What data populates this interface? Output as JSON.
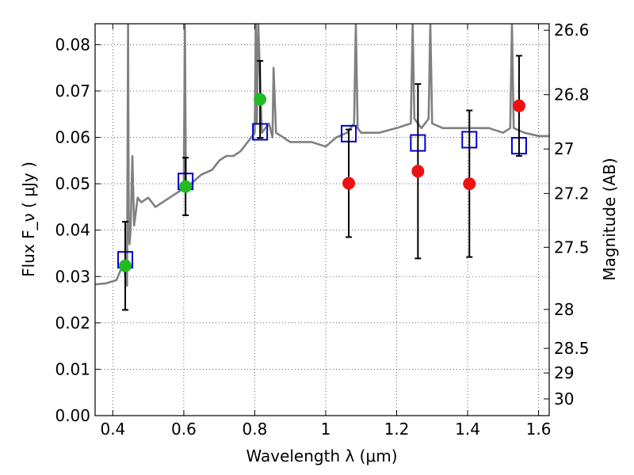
{
  "chart_data": {
    "type": "scatter",
    "xlabel": "Wavelength  λ (μm)",
    "ylabel": "Flux  F_ν  ( μJy )",
    "y2label": "Magnitude (AB)",
    "xlim": [
      0.35,
      1.63
    ],
    "ylim": [
      0.0,
      0.0845
    ],
    "grid": true,
    "x_ticks": [
      {
        "value": 0.4,
        "label": "0.4"
      },
      {
        "value": 0.6,
        "label": "0.6"
      },
      {
        "value": 0.8,
        "label": "0.8"
      },
      {
        "value": 1.0,
        "label": "1"
      },
      {
        "value": 1.2,
        "label": "1.2"
      },
      {
        "value": 1.4,
        "label": "1.4"
      },
      {
        "value": 1.6,
        "label": "1.6"
      }
    ],
    "y_ticks": [
      {
        "value": 0.0,
        "label": "0.00"
      },
      {
        "value": 0.01,
        "label": "0.01"
      },
      {
        "value": 0.02,
        "label": "0.02"
      },
      {
        "value": 0.03,
        "label": "0.03"
      },
      {
        "value": 0.04,
        "label": "0.04"
      },
      {
        "value": 0.05,
        "label": "0.05"
      },
      {
        "value": 0.06,
        "label": "0.06"
      },
      {
        "value": 0.07,
        "label": "0.07"
      },
      {
        "value": 0.08,
        "label": "0.08"
      }
    ],
    "y2_ticks": [
      {
        "label": "26.6",
        "flux": 0.0831
      },
      {
        "label": "26.8",
        "flux": 0.0692
      },
      {
        "label": "27",
        "flux": 0.0575
      },
      {
        "label": "27.2",
        "flux": 0.0479
      },
      {
        "label": "27.5",
        "flux": 0.0363
      },
      {
        "label": "28",
        "flux": 0.0229
      },
      {
        "label": "28.5",
        "flux": 0.0145
      },
      {
        "label": "29",
        "flux": 0.0092
      },
      {
        "label": "30",
        "flux": 0.0036
      }
    ],
    "series": [
      {
        "kind": "line",
        "color": "#808080",
        "x": [
          0.35,
          0.38,
          0.41,
          0.42,
          0.43,
          0.435,
          0.44,
          0.443,
          0.445,
          0.447,
          0.45,
          0.455,
          0.46,
          0.47,
          0.48,
          0.5,
          0.52,
          0.54,
          0.56,
          0.58,
          0.6,
          0.603,
          0.606,
          0.61,
          0.62,
          0.65,
          0.68,
          0.7,
          0.72,
          0.74,
          0.76,
          0.78,
          0.8,
          0.803,
          0.806,
          0.81,
          0.82,
          0.84,
          0.85,
          0.853,
          0.86,
          0.88,
          0.9,
          0.93,
          0.96,
          1.0,
          1.03,
          1.06,
          1.08,
          1.085,
          1.09,
          1.1,
          1.15,
          1.2,
          1.24,
          1.245,
          1.25,
          1.27,
          1.29,
          1.295,
          1.3,
          1.33,
          1.38,
          1.42,
          1.46,
          1.5,
          1.52,
          1.525,
          1.53,
          1.56,
          1.6,
          1.63
        ],
        "y": [
          0.0283,
          0.0285,
          0.0292,
          0.031,
          0.033,
          0.03,
          0.028,
          0.0845,
          0.04,
          0.037,
          0.04,
          0.056,
          0.041,
          0.047,
          0.046,
          0.047,
          0.045,
          0.046,
          0.047,
          0.048,
          0.049,
          0.0845,
          0.05,
          0.049,
          0.05,
          0.052,
          0.053,
          0.055,
          0.056,
          0.056,
          0.057,
          0.059,
          0.061,
          0.0845,
          0.063,
          0.0845,
          0.061,
          0.063,
          0.06,
          0.075,
          0.061,
          0.06,
          0.059,
          0.059,
          0.059,
          0.058,
          0.06,
          0.061,
          0.063,
          0.0845,
          0.062,
          0.061,
          0.061,
          0.062,
          0.063,
          0.0845,
          0.064,
          0.062,
          0.064,
          0.0845,
          0.063,
          0.062,
          0.062,
          0.062,
          0.062,
          0.061,
          0.062,
          0.0845,
          0.062,
          0.061,
          0.0603,
          0.0603
        ]
      },
      {
        "kind": "squares",
        "color": "#0000cc",
        "x": [
          0.435,
          0.605,
          0.815,
          1.065,
          1.26,
          1.405,
          1.545
        ],
        "y": [
          0.0336,
          0.0505,
          0.0612,
          0.0608,
          0.0588,
          0.0595,
          0.0582
        ]
      },
      {
        "kind": "points",
        "color": "#22bb22",
        "x": [
          0.435,
          0.605,
          0.815
        ],
        "y": [
          0.0323,
          0.0494,
          0.0682
        ],
        "yerr": [
          0.0095,
          0.0062,
          0.0083
        ]
      },
      {
        "kind": "points",
        "color": "#ee1111",
        "x": [
          1.065,
          1.26,
          1.405,
          1.545
        ],
        "y": [
          0.0501,
          0.0527,
          0.05,
          0.0668
        ],
        "yerr": [
          0.0116,
          0.0188,
          0.0158,
          0.0108
        ]
      }
    ]
  }
}
